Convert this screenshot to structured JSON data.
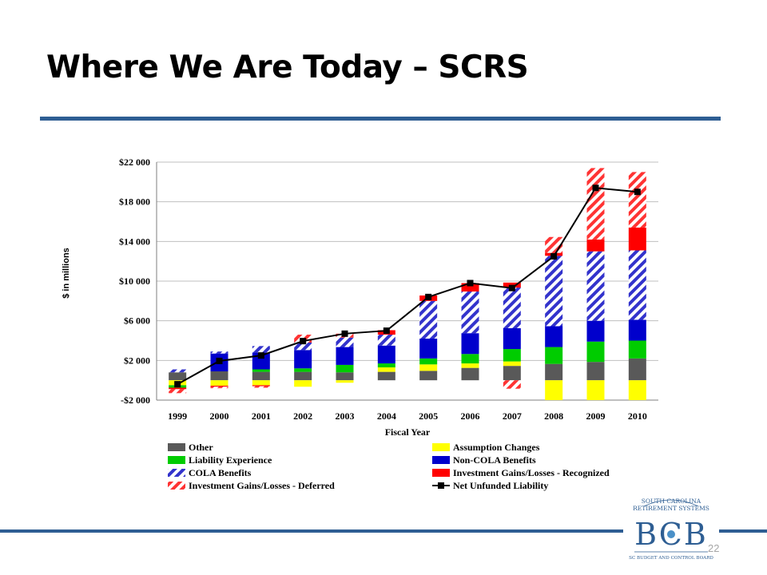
{
  "slide": {
    "title": "Where We Are Today – SCRS",
    "page_number": "22"
  },
  "logo": {
    "line1": "SOUTH CAROLINA",
    "line2": "RETIREMENT SYSTEMS",
    "monogram": "BCB",
    "footer": "SC BUDGET AND CONTROL BOARD"
  },
  "colors": {
    "accent_rule": "#2e5e93",
    "Other": "#595959",
    "Assumption Changes": "#ffff00",
    "Liability Experience": "#00cc00",
    "Non-COLA Benefits": "#0000cc",
    "COLA Benefits": "#3333cc",
    "Investment Gains/Losses - Recognized": "#ff0000",
    "Investment Gains/Losses - Deferred": "#ff3333",
    "Net Unfunded Liability": "#000000"
  },
  "chart_data": {
    "type": "bar",
    "stacked": true,
    "title": "",
    "xlabel": "Fiscal Year",
    "ylabel": "$ in millions",
    "ylim": [
      -2000,
      22000
    ],
    "yticks": [
      -2000,
      2000,
      6000,
      10000,
      14000,
      18000,
      22000
    ],
    "ytick_labels": [
      "-$2 000",
      "$2 000",
      "$6 000",
      "$10 000",
      "$14 000",
      "$18 000",
      "$22 000"
    ],
    "grid": true,
    "legend_position": "bottom",
    "categories": [
      "1999",
      "2000",
      "2001",
      "2002",
      "2003",
      "2004",
      "2005",
      "2006",
      "2007",
      "2008",
      "2009",
      "2010"
    ],
    "series": [
      {
        "name": "Other",
        "pattern": "solid",
        "values": [
          800,
          900,
          850,
          850,
          800,
          850,
          950,
          1250,
          1450,
          1650,
          1850,
          2200
        ]
      },
      {
        "name": "Assumption Changes",
        "pattern": "solid",
        "values": [
          -500,
          -550,
          -500,
          -650,
          -250,
          450,
          650,
          450,
          450,
          -2000,
          -2000,
          -2000
        ]
      },
      {
        "name": "Liability Experience",
        "pattern": "solid",
        "values": [
          -250,
          0,
          250,
          350,
          750,
          400,
          600,
          950,
          1250,
          1700,
          2050,
          1800
        ]
      },
      {
        "name": "Non-COLA Benefits",
        "pattern": "solid",
        "values": [
          0,
          1800,
          1700,
          1850,
          1800,
          1800,
          2000,
          2100,
          2100,
          2100,
          2100,
          2100
        ]
      },
      {
        "name": "COLA Benefits",
        "pattern": "striped",
        "values": [
          300,
          200,
          650,
          750,
          950,
          1100,
          3800,
          4200,
          4100,
          7100,
          7000,
          7000
        ]
      },
      {
        "name": "Investment Gains/Losses - Recognized",
        "pattern": "solid",
        "values": [
          -150,
          -100,
          -100,
          0,
          0,
          450,
          550,
          850,
          500,
          300,
          1200,
          2300
        ]
      },
      {
        "name": "Investment Gains/Losses - Deferred",
        "pattern": "striped",
        "values": [
          -400,
          -150,
          -150,
          800,
          400,
          0,
          0,
          0,
          -850,
          1600,
          7200,
          5600
        ]
      }
    ],
    "line": {
      "name": "Net Unfunded Liability",
      "values": [
        -400,
        1950,
        2500,
        3950,
        4700,
        5000,
        8400,
        9800,
        9300,
        12500,
        19400,
        19000
      ]
    },
    "legend_order": [
      "Other",
      "Assumption Changes",
      "Liability Experience",
      "Non-COLA Benefits",
      "COLA Benefits",
      "Investment Gains/Losses - Recognized",
      "Investment Gains/Losses - Deferred",
      "Net Unfunded Liability"
    ]
  }
}
